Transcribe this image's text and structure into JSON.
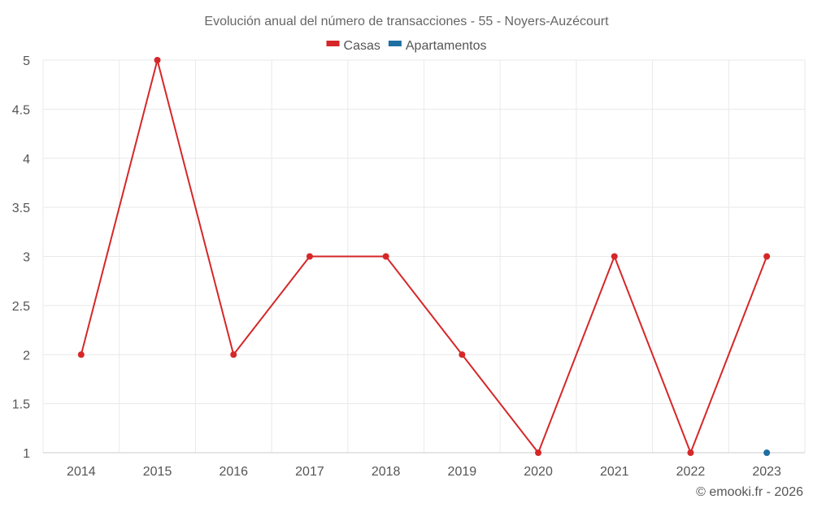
{
  "chart_data": {
    "type": "line",
    "title": "Evolución anual del número de transacciones - 55 - Noyers-Auzécourt",
    "categories": [
      "2014",
      "2015",
      "2016",
      "2017",
      "2018",
      "2019",
      "2020",
      "2021",
      "2022",
      "2023"
    ],
    "y_ticks": [
      "1",
      "1.5",
      "2",
      "2.5",
      "3",
      "3.5",
      "4",
      "4.5",
      "5"
    ],
    "ylim": [
      1,
      5
    ],
    "grid": true,
    "legend_position": "top",
    "series": [
      {
        "name": "Casas",
        "color": "#d62728",
        "values": [
          2,
          5,
          2,
          3,
          3,
          2,
          1,
          3,
          1,
          3
        ]
      },
      {
        "name": "Apartamentos",
        "color": "#1f6fa3",
        "values": [
          null,
          null,
          null,
          null,
          null,
          null,
          null,
          null,
          null,
          1
        ]
      }
    ]
  },
  "footer": "© emooki.fr - 2026"
}
